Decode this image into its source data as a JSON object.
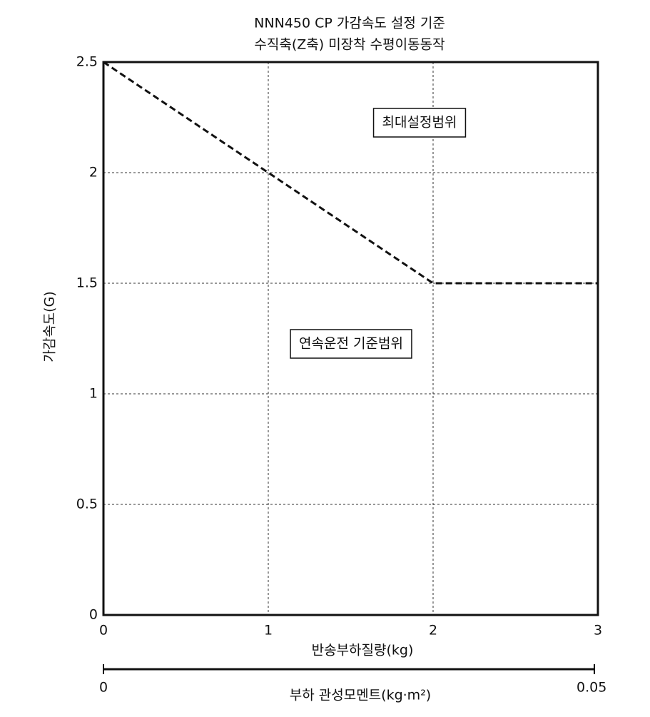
{
  "chart_data": {
    "type": "line",
    "title": "NNN450 CP 가감속도 설정 기준",
    "subtitle": "수직축(Z축) 미장착 수평이동동작",
    "xlabel": "반송부하질량(kg)",
    "ylabel": "가감속도(G)",
    "x2label": "부하 관성모멘트(kg·m²)",
    "x": [
      0,
      1,
      2,
      3
    ],
    "values": [
      2.5,
      2.0,
      1.5,
      1.5
    ],
    "color": "#111111",
    "line_style": "dashed",
    "xlim": [
      0,
      3
    ],
    "xticks": [
      0,
      1,
      2,
      3
    ],
    "ylim": [
      0,
      2.5
    ],
    "yticks": [
      0,
      0.5,
      1,
      1.5,
      2,
      2.5
    ],
    "x2lim": [
      0,
      0.05
    ],
    "x2ticks": [
      0,
      0.05
    ],
    "grid": true,
    "annotations": [
      "최대설정범위",
      "연속운전 기준범위"
    ]
  }
}
